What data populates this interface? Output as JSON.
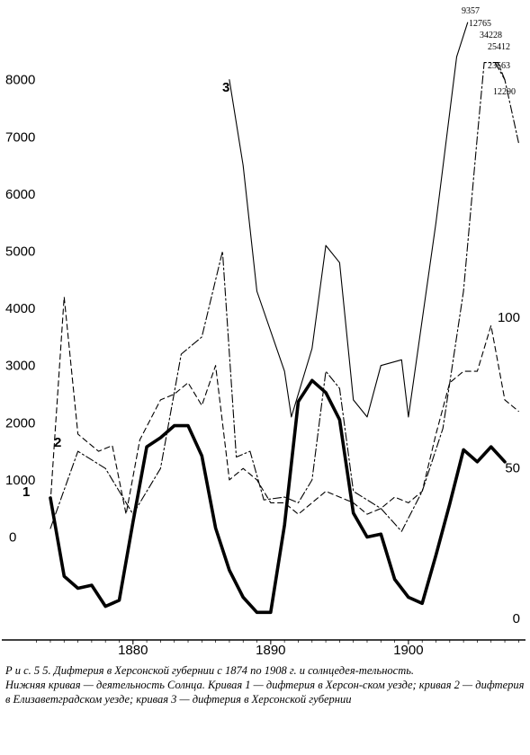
{
  "chart_data": {
    "type": "line",
    "x_ticks": [
      "1880",
      "1890",
      "1900"
    ],
    "y_ticks_left": [
      "0",
      "1000",
      "2000",
      "3000",
      "4000",
      "5000",
      "6000",
      "7000",
      "8000"
    ],
    "y_ticks_right": [
      "0",
      "50",
      "100"
    ],
    "ylim_left": [
      -1800,
      9300
    ],
    "ylim_right": [
      0,
      200
    ],
    "xlim": [
      1872.5,
      1908.5
    ],
    "grid": false,
    "series_labels": [
      "1",
      "2",
      "3"
    ],
    "annotations": [
      "9357",
      "12765",
      "34228",
      "25412",
      "23563",
      "12290"
    ],
    "series": [
      {
        "name": "3",
        "axis": "left",
        "style": "solid",
        "x": [
          1887,
          1888,
          1889,
          1891,
          1891.5,
          1893,
          1894,
          1895,
          1896,
          1897,
          1898,
          1899.5,
          1900,
          1902,
          1903.5,
          1904.3
        ],
        "y": [
          8000,
          6500,
          4300,
          2900,
          2100,
          3300,
          5100,
          4800,
          2400,
          2100,
          3000,
          3100,
          2100,
          5500,
          8400,
          9000
        ]
      },
      {
        "name": "3 (1906–1908)",
        "axis": "left",
        "style": "dashdot",
        "x": [
          1906.3,
          1907,
          1908
        ],
        "y": [
          8300,
          8000,
          6900
        ]
      },
      {
        "name": "1",
        "axis": "left",
        "style": "dashdot",
        "x": [
          1874,
          1876,
          1878,
          1880,
          1882,
          1883.5,
          1885,
          1886.5,
          1887.5,
          1888.5,
          1889.5,
          1891,
          1892,
          1893,
          1894,
          1895,
          1896,
          1898,
          1899.5,
          1901,
          1902.5,
          1904,
          1905,
          1905.5,
          1906.5,
          1907
        ],
        "y": [
          150,
          1500,
          1200,
          400,
          1200,
          3200,
          3500,
          5000,
          1400,
          1500,
          650,
          700,
          600,
          1000,
          2900,
          2600,
          800,
          500,
          100,
          800,
          1900,
          4300,
          7000,
          8300,
          8300,
          8000
        ]
      },
      {
        "name": "2",
        "axis": "left",
        "style": "dashed",
        "x": [
          1874,
          1875,
          1876,
          1877.5,
          1878.5,
          1879.5,
          1880.5,
          1882,
          1883,
          1884,
          1885,
          1886,
          1887,
          1888,
          1889,
          1890,
          1891,
          1892,
          1893,
          1894,
          1895,
          1896,
          1897,
          1898,
          1899,
          1900,
          1901,
          1902,
          1903,
          1904,
          1905,
          1906,
          1907,
          1908
        ],
        "y": [
          600,
          4200,
          1800,
          1500,
          1600,
          400,
          1700,
          2400,
          2500,
          2700,
          2300,
          3000,
          1000,
          1200,
          1000,
          600,
          600,
          400,
          600,
          800,
          700,
          600,
          400,
          500,
          700,
          600,
          800,
          1800,
          2700,
          2900,
          2900,
          3700,
          2400,
          2200
        ]
      },
      {
        "name": "solar activity",
        "axis": "right",
        "style": "solid-thick",
        "x": [
          1874,
          1875,
          1876,
          1877,
          1878,
          1879,
          1880,
          1881,
          1882,
          1883,
          1884,
          1885,
          1886,
          1887,
          1888,
          1889,
          1890,
          1891,
          1892,
          1893,
          1894,
          1895,
          1896,
          1897,
          1898,
          1899,
          1900,
          1901,
          1902,
          1903,
          1904,
          1905,
          1906,
          1907
        ],
        "y": [
          40,
          14,
          10,
          11,
          4,
          6,
          32,
          57,
          60,
          64,
          64,
          54,
          30,
          16,
          7,
          2,
          2,
          31,
          72,
          79,
          75,
          66,
          35,
          27,
          28,
          13,
          7,
          5,
          21,
          38,
          56,
          52,
          57,
          52
        ]
      }
    ]
  },
  "caption": {
    "title": "Р и с. 5 5. Дифтерия в Херсонской губернии с 1874 по 1908 г. и солнцедея-тельность.",
    "body": "Нижняя кривая — деятельность Солнца. Кривая 1 — дифтерия в Херсон-ском уезде; кривая 2 — дифтерия в Елизаветградском уезде; кривая 3 — дифтерия в Херсонской губернии"
  }
}
